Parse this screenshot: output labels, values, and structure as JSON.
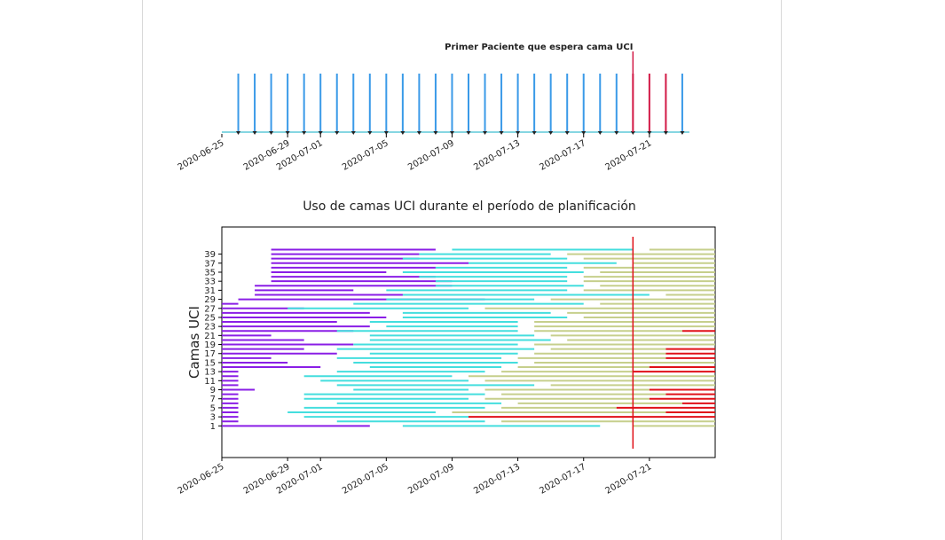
{
  "chart_data": [
    {
      "type": "event",
      "annotation": {
        "text": "Primer Paciente que espera cama UCI",
        "x": "2020-07-20",
        "color": "#d21a46"
      },
      "series": [
        {
          "color": "#3a9ae8",
          "x": [
            "2020-06-26",
            "2020-06-27",
            "2020-06-28",
            "2020-06-29",
            "2020-06-30",
            "2020-07-01",
            "2020-07-02",
            "2020-07-03",
            "2020-07-04",
            "2020-07-05",
            "2020-07-06",
            "2020-07-07",
            "2020-07-08",
            "2020-07-09",
            "2020-07-10",
            "2020-07-11",
            "2020-07-12",
            "2020-07-13",
            "2020-07-14",
            "2020-07-15",
            "2020-07-16",
            "2020-07-17",
            "2020-07-18",
            "2020-07-19",
            "2020-07-23"
          ]
        },
        {
          "color": "#d21a46",
          "x": [
            "2020-07-20",
            "2020-07-21",
            "2020-07-22"
          ]
        }
      ],
      "xlim": [
        "2020-06-25",
        "2020-07-25"
      ],
      "xticks": [
        "2020-06-25",
        "2020-06-29",
        "2020-07-01",
        "2020-07-05",
        "2020-07-09",
        "2020-07-13",
        "2020-07-17",
        "2020-07-21"
      ]
    },
    {
      "type": "gantt",
      "title": "Uso de camas UCI durante el período de planificación",
      "ylabel": "Camas UCI",
      "ylim": [
        -6,
        45
      ],
      "yticks": [
        1,
        3,
        5,
        7,
        9,
        11,
        13,
        15,
        17,
        19,
        21,
        23,
        25,
        27,
        29,
        31,
        33,
        35,
        37,
        39
      ],
      "xlim": [
        "2020-06-25",
        "2020-07-25"
      ],
      "xticks": [
        "2020-06-25",
        "2020-06-29",
        "2020-07-01",
        "2020-07-05",
        "2020-07-09",
        "2020-07-13",
        "2020-07-17",
        "2020-07-21"
      ],
      "vline": {
        "x": "2020-07-20",
        "color": "#e01018"
      },
      "series": [
        {
          "color": "#8a1ee6",
          "segments": [
            [
              1,
              "2020-06-25",
              "2020-07-04"
            ],
            [
              2,
              "2020-06-25",
              "2020-06-26"
            ],
            [
              3,
              "2020-06-25",
              "2020-06-26"
            ],
            [
              4,
              "2020-06-25",
              "2020-06-26"
            ],
            [
              5,
              "2020-06-25",
              "2020-06-26"
            ],
            [
              6,
              "2020-06-25",
              "2020-06-26"
            ],
            [
              7,
              "2020-06-25",
              "2020-06-26"
            ],
            [
              8,
              "2020-06-25",
              "2020-06-26"
            ],
            [
              9,
              "2020-06-25",
              "2020-06-27"
            ],
            [
              10,
              "2020-06-25",
              "2020-06-26"
            ],
            [
              11,
              "2020-06-25",
              "2020-06-26"
            ],
            [
              12,
              "2020-06-25",
              "2020-06-26"
            ],
            [
              13,
              "2020-06-25",
              "2020-06-26"
            ],
            [
              14,
              "2020-06-25",
              "2020-07-01"
            ],
            [
              15,
              "2020-06-25",
              "2020-06-29"
            ],
            [
              16,
              "2020-06-25",
              "2020-06-28"
            ],
            [
              17,
              "2020-06-25",
              "2020-07-02"
            ],
            [
              18,
              "2020-06-25",
              "2020-06-30"
            ],
            [
              19,
              "2020-06-25",
              "2020-07-03"
            ],
            [
              20,
              "2020-06-25",
              "2020-06-30"
            ],
            [
              21,
              "2020-06-25",
              "2020-06-28"
            ],
            [
              22,
              "2020-06-25",
              "2020-07-03"
            ],
            [
              23,
              "2020-06-25",
              "2020-07-04"
            ],
            [
              24,
              "2020-06-25",
              "2020-07-02"
            ],
            [
              25,
              "2020-06-25",
              "2020-07-05"
            ],
            [
              26,
              "2020-06-25",
              "2020-07-04"
            ],
            [
              27,
              "2020-06-25",
              "2020-06-30"
            ],
            [
              28,
              "2020-06-25",
              "2020-06-26"
            ],
            [
              29,
              "2020-06-26",
              "2020-07-11"
            ],
            [
              30,
              "2020-06-27",
              "2020-07-10"
            ],
            [
              31,
              "2020-06-27",
              "2020-07-03"
            ],
            [
              32,
              "2020-06-27",
              "2020-07-09"
            ],
            [
              33,
              "2020-06-28",
              "2020-07-09"
            ],
            [
              34,
              "2020-06-28",
              "2020-07-08"
            ],
            [
              35,
              "2020-06-28",
              "2020-07-05"
            ],
            [
              36,
              "2020-06-28",
              "2020-07-08"
            ],
            [
              37,
              "2020-06-28",
              "2020-07-10"
            ],
            [
              38,
              "2020-06-28",
              "2020-07-07"
            ],
            [
              39,
              "2020-06-28",
              "2020-07-07"
            ],
            [
              40,
              "2020-06-28",
              "2020-07-08"
            ]
          ]
        },
        {
          "color": "#44dede",
          "segments": [
            [
              1,
              "2020-07-06",
              "2020-07-18"
            ],
            [
              2,
              "2020-07-02",
              "2020-07-11"
            ],
            [
              3,
              "2020-06-30",
              "2020-07-10"
            ],
            [
              4,
              "2020-06-29",
              "2020-07-08"
            ],
            [
              5,
              "2020-06-30",
              "2020-07-11"
            ],
            [
              6,
              "2020-07-02",
              "2020-07-12"
            ],
            [
              7,
              "2020-06-30",
              "2020-07-10"
            ],
            [
              8,
              "2020-06-30",
              "2020-07-11"
            ],
            [
              9,
              "2020-07-03",
              "2020-07-10"
            ],
            [
              10,
              "2020-07-02",
              "2020-07-14"
            ],
            [
              11,
              "2020-07-01",
              "2020-07-10"
            ],
            [
              12,
              "2020-06-30",
              "2020-07-09"
            ],
            [
              13,
              "2020-07-02",
              "2020-07-11"
            ],
            [
              14,
              "2020-07-04",
              "2020-07-12"
            ],
            [
              15,
              "2020-07-03",
              "2020-07-13"
            ],
            [
              16,
              "2020-07-02",
              "2020-07-12"
            ],
            [
              17,
              "2020-07-04",
              "2020-07-13"
            ],
            [
              18,
              "2020-07-02",
              "2020-07-14"
            ],
            [
              19,
              "2020-07-03",
              "2020-07-13"
            ],
            [
              20,
              "2020-07-04",
              "2020-07-15"
            ],
            [
              21,
              "2020-07-04",
              "2020-07-14"
            ],
            [
              22,
              "2020-07-02",
              "2020-07-13"
            ],
            [
              23,
              "2020-07-05",
              "2020-07-13"
            ],
            [
              24,
              "2020-07-04",
              "2020-07-13"
            ],
            [
              25,
              "2020-07-06",
              "2020-07-16"
            ],
            [
              26,
              "2020-07-06",
              "2020-07-15"
            ],
            [
              27,
              "2020-06-29",
              "2020-07-10"
            ],
            [
              28,
              "2020-07-03",
              "2020-07-17"
            ],
            [
              29,
              "2020-07-05",
              "2020-07-14"
            ],
            [
              30,
              "2020-07-06",
              "2020-07-21"
            ],
            [
              31,
              "2020-07-05",
              "2020-07-16"
            ],
            [
              32,
              "2020-07-08",
              "2020-07-17"
            ],
            [
              33,
              "2020-07-08",
              "2020-07-16"
            ],
            [
              34,
              "2020-07-07",
              "2020-07-16"
            ],
            [
              35,
              "2020-07-06",
              "2020-07-17"
            ],
            [
              36,
              "2020-07-08",
              "2020-07-16"
            ],
            [
              37,
              "2020-07-10",
              "2020-07-19"
            ],
            [
              38,
              "2020-07-06",
              "2020-07-16"
            ],
            [
              39,
              "2020-07-07",
              "2020-07-15"
            ],
            [
              40,
              "2020-07-09",
              "2020-07-20"
            ]
          ]
        },
        {
          "color": "#c6cf8c",
          "segments": [
            [
              1,
              "2020-07-20",
              "2020-07-25"
            ],
            [
              2,
              "2020-07-12",
              "2020-07-25"
            ],
            [
              4,
              "2020-07-09",
              "2020-07-22"
            ],
            [
              5,
              "2020-07-12",
              "2020-07-19"
            ],
            [
              6,
              "2020-07-13",
              "2020-07-23"
            ],
            [
              7,
              "2020-07-11",
              "2020-07-21"
            ],
            [
              8,
              "2020-07-12",
              "2020-07-22"
            ],
            [
              9,
              "2020-07-11",
              "2020-07-21"
            ],
            [
              10,
              "2020-07-15",
              "2020-07-25"
            ],
            [
              11,
              "2020-07-11",
              "2020-07-25"
            ],
            [
              12,
              "2020-07-10",
              "2020-07-25"
            ],
            [
              13,
              "2020-07-12",
              "2020-07-20"
            ],
            [
              14,
              "2020-07-13",
              "2020-07-21"
            ],
            [
              15,
              "2020-07-14",
              "2020-07-25"
            ],
            [
              16,
              "2020-07-13",
              "2020-07-22"
            ],
            [
              17,
              "2020-07-14",
              "2020-07-22"
            ],
            [
              18,
              "2020-07-15",
              "2020-07-22"
            ],
            [
              19,
              "2020-07-14",
              "2020-07-25"
            ],
            [
              20,
              "2020-07-16",
              "2020-07-25"
            ],
            [
              21,
              "2020-07-15",
              "2020-07-25"
            ],
            [
              22,
              "2020-07-14",
              "2020-07-23"
            ],
            [
              23,
              "2020-07-14",
              "2020-07-25"
            ],
            [
              24,
              "2020-07-14",
              "2020-07-25"
            ],
            [
              25,
              "2020-07-17",
              "2020-07-25"
            ],
            [
              26,
              "2020-07-16",
              "2020-07-25"
            ],
            [
              27,
              "2020-07-11",
              "2020-07-25"
            ],
            [
              28,
              "2020-07-18",
              "2020-07-25"
            ],
            [
              29,
              "2020-07-15",
              "2020-07-25"
            ],
            [
              30,
              "2020-07-22",
              "2020-07-25"
            ],
            [
              31,
              "2020-07-17",
              "2020-07-25"
            ],
            [
              32,
              "2020-07-18",
              "2020-07-25"
            ],
            [
              33,
              "2020-07-17",
              "2020-07-25"
            ],
            [
              34,
              "2020-07-17",
              "2020-07-25"
            ],
            [
              35,
              "2020-07-18",
              "2020-07-25"
            ],
            [
              36,
              "2020-07-17",
              "2020-07-25"
            ],
            [
              37,
              "2020-07-20",
              "2020-07-25"
            ],
            [
              38,
              "2020-07-17",
              "2020-07-25"
            ],
            [
              39,
              "2020-07-16",
              "2020-07-25"
            ],
            [
              40,
              "2020-07-21",
              "2020-07-25"
            ]
          ]
        },
        {
          "color": "#e01018",
          "segments": [
            [
              3,
              "2020-07-10",
              "2020-07-25"
            ],
            [
              4,
              "2020-07-22",
              "2020-07-25"
            ],
            [
              5,
              "2020-07-19",
              "2020-07-25"
            ],
            [
              6,
              "2020-07-23",
              "2020-07-25"
            ],
            [
              7,
              "2020-07-21",
              "2020-07-25"
            ],
            [
              8,
              "2020-07-22",
              "2020-07-25"
            ],
            [
              9,
              "2020-07-21",
              "2020-07-25"
            ],
            [
              13,
              "2020-07-20",
              "2020-07-25"
            ],
            [
              14,
              "2020-07-21",
              "2020-07-25"
            ],
            [
              16,
              "2020-07-22",
              "2020-07-25"
            ],
            [
              17,
              "2020-07-22",
              "2020-07-25"
            ],
            [
              18,
              "2020-07-22",
              "2020-07-25"
            ],
            [
              22,
              "2020-07-23",
              "2020-07-25"
            ]
          ]
        }
      ]
    }
  ]
}
